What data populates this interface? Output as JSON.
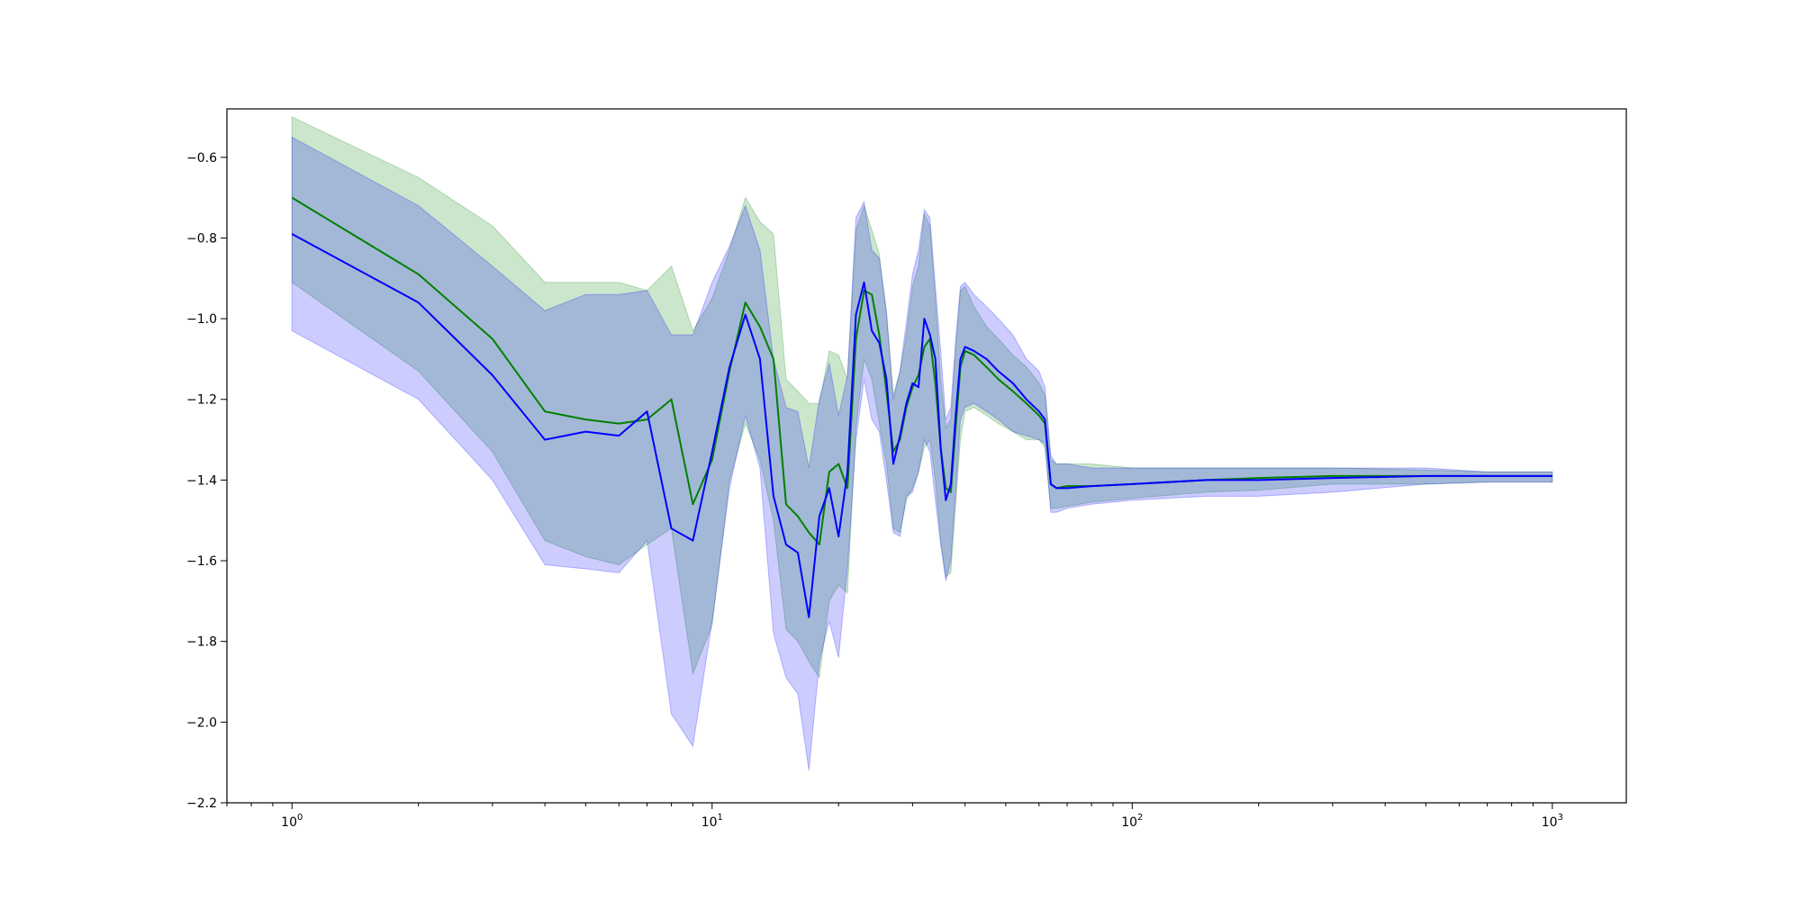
{
  "chart_data": {
    "type": "line",
    "title": "",
    "xlabel": "",
    "ylabel": "",
    "xscale": "log",
    "xlim": [
      0.7,
      1500
    ],
    "ylim": [
      -2.2,
      -0.48
    ],
    "grid": false,
    "legend": "none",
    "x_ticks": [
      {
        "value": 1,
        "base": "10",
        "exp": "0"
      },
      {
        "value": 10,
        "base": "10",
        "exp": "1"
      },
      {
        "value": 100,
        "base": "10",
        "exp": "2"
      },
      {
        "value": 1000,
        "base": "10",
        "exp": "3"
      }
    ],
    "y_ticks": [
      {
        "value": -0.6,
        "label": "−0.6"
      },
      {
        "value": -0.8,
        "label": "−0.8"
      },
      {
        "value": -1.0,
        "label": "−1.0"
      },
      {
        "value": -1.2,
        "label": "−1.2"
      },
      {
        "value": -1.4,
        "label": "−1.4"
      },
      {
        "value": -1.6,
        "label": "−1.6"
      },
      {
        "value": -1.8,
        "label": "−1.8"
      },
      {
        "value": -2.0,
        "label": "−2.0"
      },
      {
        "value": -2.2,
        "label": "−2.2"
      }
    ],
    "series": [
      {
        "color": "#008000",
        "band_color": "#008000",
        "x": [
          1,
          2,
          3,
          4,
          5,
          6,
          7,
          8,
          9,
          10,
          11,
          12,
          13,
          14,
          15,
          16,
          17,
          18,
          19,
          20,
          21,
          22,
          23,
          24,
          25,
          26,
          27,
          28,
          29,
          30,
          31,
          32,
          33,
          34,
          35,
          36,
          37,
          38,
          39,
          40,
          42,
          45,
          48,
          52,
          56,
          60,
          62,
          64,
          66,
          70,
          80,
          100,
          150,
          200,
          300,
          500,
          700,
          1000
        ],
        "y": [
          -0.7,
          -0.89,
          -1.05,
          -1.23,
          -1.25,
          -1.26,
          -1.25,
          -1.2,
          -1.46,
          -1.35,
          -1.13,
          -0.96,
          -1.02,
          -1.1,
          -1.46,
          -1.49,
          -1.53,
          -1.56,
          -1.38,
          -1.36,
          -1.42,
          -1.05,
          -0.93,
          -0.94,
          -1.04,
          -1.18,
          -1.33,
          -1.3,
          -1.22,
          -1.17,
          -1.14,
          -1.07,
          -1.05,
          -1.16,
          -1.32,
          -1.42,
          -1.43,
          -1.27,
          -1.12,
          -1.08,
          -1.09,
          -1.12,
          -1.15,
          -1.18,
          -1.21,
          -1.24,
          -1.26,
          -1.41,
          -1.42,
          -1.415,
          -1.415,
          -1.41,
          -1.4,
          -1.395,
          -1.39,
          -1.39,
          -1.39,
          -1.39
        ],
        "lower": [
          -0.91,
          -1.13,
          -1.33,
          -1.55,
          -1.59,
          -1.61,
          -1.56,
          -1.52,
          -1.88,
          -1.76,
          -1.4,
          -1.26,
          -1.35,
          -1.5,
          -1.77,
          -1.8,
          -1.85,
          -1.89,
          -1.7,
          -1.66,
          -1.68,
          -1.27,
          -1.1,
          -1.15,
          -1.26,
          -1.36,
          -1.52,
          -1.53,
          -1.45,
          -1.42,
          -1.38,
          -1.32,
          -1.3,
          -1.4,
          -1.55,
          -1.64,
          -1.63,
          -1.46,
          -1.3,
          -1.23,
          -1.22,
          -1.24,
          -1.26,
          -1.28,
          -1.3,
          -1.3,
          -1.32,
          -1.47,
          -1.47,
          -1.465,
          -1.455,
          -1.445,
          -1.43,
          -1.425,
          -1.41,
          -1.41,
          -1.405,
          -1.405
        ],
        "upper": [
          -0.5,
          -0.65,
          -0.77,
          -0.91,
          -0.91,
          -0.91,
          -0.93,
          -0.87,
          -1.03,
          -0.95,
          -0.83,
          -0.7,
          -0.76,
          -0.79,
          -1.15,
          -1.18,
          -1.21,
          -1.21,
          -1.08,
          -1.09,
          -1.15,
          -0.78,
          -0.72,
          -0.78,
          -0.84,
          -0.99,
          -1.19,
          -1.13,
          -1.04,
          -0.92,
          -0.87,
          -0.74,
          -0.77,
          -0.95,
          -1.15,
          -1.27,
          -1.25,
          -1.08,
          -0.93,
          -0.92,
          -0.97,
          -1.02,
          -1.05,
          -1.09,
          -1.12,
          -1.16,
          -1.19,
          -1.35,
          -1.36,
          -1.36,
          -1.36,
          -1.37,
          -1.37,
          -1.37,
          -1.37,
          -1.375,
          -1.38,
          -1.38
        ]
      },
      {
        "color": "#0000ff",
        "band_color": "#0000ff",
        "x": [
          1,
          2,
          3,
          4,
          5,
          6,
          7,
          8,
          9,
          10,
          11,
          12,
          13,
          14,
          15,
          16,
          17,
          18,
          19,
          20,
          21,
          22,
          23,
          24,
          25,
          26,
          27,
          28,
          29,
          30,
          31,
          32,
          33,
          34,
          35,
          36,
          37,
          38,
          39,
          40,
          42,
          45,
          48,
          52,
          56,
          60,
          62,
          64,
          66,
          70,
          80,
          100,
          150,
          200,
          300,
          500,
          700,
          1000
        ],
        "y": [
          -0.79,
          -0.96,
          -1.14,
          -1.3,
          -1.28,
          -1.29,
          -1.23,
          -1.52,
          -1.55,
          -1.33,
          -1.12,
          -0.99,
          -1.1,
          -1.44,
          -1.56,
          -1.58,
          -1.74,
          -1.49,
          -1.42,
          -1.54,
          -1.38,
          -0.99,
          -0.91,
          -1.03,
          -1.06,
          -1.15,
          -1.36,
          -1.29,
          -1.21,
          -1.16,
          -1.17,
          -1.0,
          -1.04,
          -1.1,
          -1.32,
          -1.45,
          -1.41,
          -1.24,
          -1.1,
          -1.07,
          -1.08,
          -1.1,
          -1.13,
          -1.16,
          -1.2,
          -1.23,
          -1.25,
          -1.41,
          -1.42,
          -1.42,
          -1.415,
          -1.41,
          -1.4,
          -1.4,
          -1.395,
          -1.39,
          -1.39,
          -1.39
        ],
        "lower": [
          -1.03,
          -1.2,
          -1.4,
          -1.61,
          -1.62,
          -1.63,
          -1.55,
          -1.98,
          -2.06,
          -1.75,
          -1.42,
          -1.24,
          -1.37,
          -1.78,
          -1.89,
          -1.93,
          -2.12,
          -1.85,
          -1.75,
          -1.84,
          -1.62,
          -1.3,
          -1.15,
          -1.25,
          -1.28,
          -1.4,
          -1.53,
          -1.54,
          -1.44,
          -1.43,
          -1.38,
          -1.3,
          -1.33,
          -1.45,
          -1.56,
          -1.65,
          -1.6,
          -1.43,
          -1.25,
          -1.22,
          -1.21,
          -1.23,
          -1.25,
          -1.28,
          -1.29,
          -1.3,
          -1.31,
          -1.48,
          -1.48,
          -1.47,
          -1.46,
          -1.45,
          -1.44,
          -1.44,
          -1.43,
          -1.41,
          -1.405,
          -1.405
        ],
        "upper": [
          -0.55,
          -0.72,
          -0.87,
          -0.98,
          -0.94,
          -0.94,
          -0.93,
          -1.04,
          -1.04,
          -0.91,
          -0.82,
          -0.72,
          -0.83,
          -1.1,
          -1.22,
          -1.23,
          -1.37,
          -1.2,
          -1.11,
          -1.24,
          -1.14,
          -0.75,
          -0.71,
          -0.83,
          -0.85,
          -0.98,
          -1.2,
          -1.13,
          -1.01,
          -0.89,
          -0.83,
          -0.73,
          -0.75,
          -0.92,
          -1.08,
          -1.25,
          -1.22,
          -1.05,
          -0.92,
          -0.91,
          -0.94,
          -0.97,
          -1.0,
          -1.04,
          -1.1,
          -1.13,
          -1.17,
          -1.34,
          -1.36,
          -1.36,
          -1.37,
          -1.37,
          -1.37,
          -1.37,
          -1.37,
          -1.37,
          -1.38,
          -1.38
        ]
      }
    ]
  }
}
